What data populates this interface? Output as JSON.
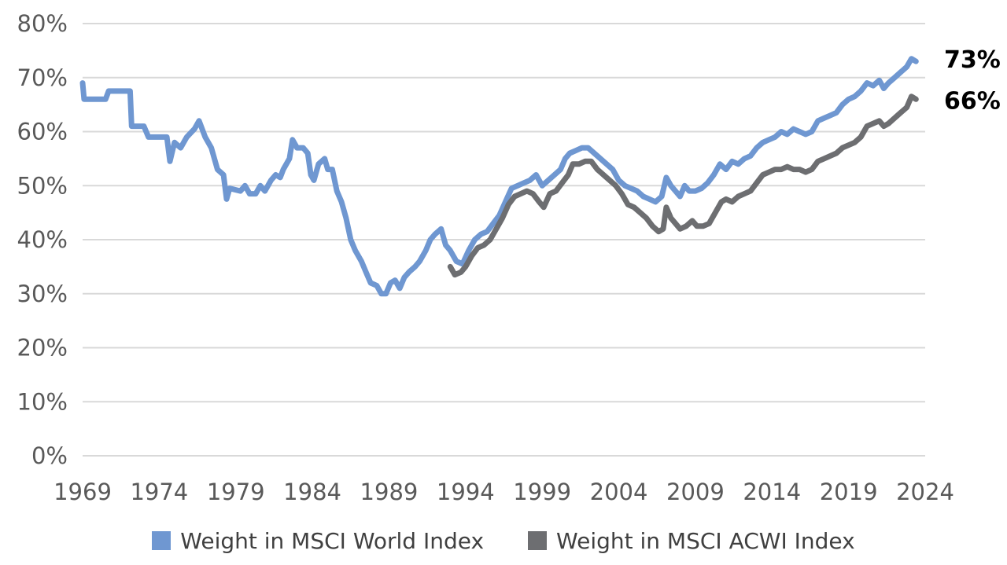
{
  "chart_data": {
    "type": "line",
    "title": "",
    "xlabel": "",
    "ylabel": "",
    "xlim": [
      1969,
      2024
    ],
    "ylim": [
      0,
      80
    ],
    "x_ticks": [
      "1969",
      "1974",
      "1979",
      "1984",
      "1989",
      "1994",
      "1999",
      "2004",
      "2009",
      "2014",
      "2019",
      "2024"
    ],
    "y_ticks": [
      "0%",
      "10%",
      "20%",
      "30%",
      "40%",
      "50%",
      "60%",
      "70%",
      "80%"
    ],
    "grid": "horizontal",
    "legend_position": "bottom",
    "series": [
      {
        "name": "Weight in MSCI World Index",
        "color": "#6F97D1",
        "end_label": "73%",
        "points": [
          [
            1969,
            69
          ],
          [
            1969.1,
            66
          ],
          [
            1970.5,
            66
          ],
          [
            1970.7,
            67.5
          ],
          [
            1972.1,
            67.5
          ],
          [
            1972.2,
            61
          ],
          [
            1973,
            61
          ],
          [
            1973.3,
            59
          ],
          [
            1974.5,
            59
          ],
          [
            1974.7,
            54.5
          ],
          [
            1975,
            58
          ],
          [
            1975.4,
            57
          ],
          [
            1975.8,
            59
          ],
          [
            1976.3,
            60.5
          ],
          [
            1976.6,
            62
          ],
          [
            1977,
            59
          ],
          [
            1977.4,
            57
          ],
          [
            1977.8,
            53
          ],
          [
            1978.2,
            52
          ],
          [
            1978.4,
            47.5
          ],
          [
            1978.6,
            49.5
          ],
          [
            1979.3,
            49
          ],
          [
            1979.6,
            50
          ],
          [
            1979.9,
            48.5
          ],
          [
            1980.3,
            48.5
          ],
          [
            1980.6,
            50
          ],
          [
            1980.9,
            49
          ],
          [
            1981.3,
            51
          ],
          [
            1981.6,
            52
          ],
          [
            1981.9,
            51.5
          ],
          [
            1982.1,
            53
          ],
          [
            1982.5,
            55
          ],
          [
            1982.7,
            58.5
          ],
          [
            1983,
            57
          ],
          [
            1983.4,
            57
          ],
          [
            1983.7,
            56
          ],
          [
            1983.9,
            52
          ],
          [
            1984.1,
            51
          ],
          [
            1984.4,
            54
          ],
          [
            1984.8,
            55
          ],
          [
            1985,
            53
          ],
          [
            1985.3,
            53
          ],
          [
            1985.6,
            49
          ],
          [
            1985.9,
            47
          ],
          [
            1986.2,
            44
          ],
          [
            1986.5,
            40
          ],
          [
            1986.8,
            38
          ],
          [
            1987.2,
            36
          ],
          [
            1987.5,
            34
          ],
          [
            1987.8,
            32
          ],
          [
            1988.2,
            31.5
          ],
          [
            1988.5,
            30
          ],
          [
            1988.8,
            30
          ],
          [
            1989.1,
            32
          ],
          [
            1989.4,
            32.5
          ],
          [
            1989.7,
            31
          ],
          [
            1990,
            33
          ],
          [
            1990.3,
            34
          ],
          [
            1990.7,
            35
          ],
          [
            1991,
            36
          ],
          [
            1991.4,
            38
          ],
          [
            1991.7,
            40
          ],
          [
            1992,
            41
          ],
          [
            1992.4,
            42
          ],
          [
            1992.7,
            39
          ],
          [
            1993,
            38
          ],
          [
            1993.4,
            36
          ],
          [
            1993.8,
            35.5
          ],
          [
            1994.2,
            38
          ],
          [
            1994.6,
            40
          ],
          [
            1995,
            41
          ],
          [
            1995.4,
            41.5
          ],
          [
            1995.8,
            43
          ],
          [
            1996.2,
            44.5
          ],
          [
            1996.6,
            47
          ],
          [
            1997,
            49.5
          ],
          [
            1997.4,
            50
          ],
          [
            1997.8,
            50.5
          ],
          [
            1998.2,
            51
          ],
          [
            1998.6,
            52
          ],
          [
            1999,
            50
          ],
          [
            1999.4,
            51
          ],
          [
            1999.8,
            52
          ],
          [
            2000.2,
            53
          ],
          [
            2000.5,
            55
          ],
          [
            2000.8,
            56
          ],
          [
            2001.2,
            56.5
          ],
          [
            2001.6,
            57
          ],
          [
            2002,
            57
          ],
          [
            2002.4,
            56
          ],
          [
            2002.8,
            55
          ],
          [
            2003.2,
            54
          ],
          [
            2003.6,
            53
          ],
          [
            2004,
            51
          ],
          [
            2004.4,
            50
          ],
          [
            2004.8,
            49.5
          ],
          [
            2005.2,
            49
          ],
          [
            2005.6,
            48
          ],
          [
            2006,
            47.5
          ],
          [
            2006.4,
            47
          ],
          [
            2006.8,
            48
          ],
          [
            2007.1,
            51.5
          ],
          [
            2007.4,
            50
          ],
          [
            2007.7,
            49
          ],
          [
            2008,
            48
          ],
          [
            2008.3,
            50
          ],
          [
            2008.6,
            49
          ],
          [
            2009,
            49
          ],
          [
            2009.4,
            49.5
          ],
          [
            2009.8,
            50.5
          ],
          [
            2010.2,
            52
          ],
          [
            2010.6,
            54
          ],
          [
            2011,
            53
          ],
          [
            2011.4,
            54.5
          ],
          [
            2011.8,
            54
          ],
          [
            2012.2,
            55
          ],
          [
            2012.6,
            55.5
          ],
          [
            2013,
            57
          ],
          [
            2013.4,
            58
          ],
          [
            2013.8,
            58.5
          ],
          [
            2014.2,
            59
          ],
          [
            2014.6,
            60
          ],
          [
            2015,
            59.5
          ],
          [
            2015.4,
            60.5
          ],
          [
            2015.8,
            60
          ],
          [
            2016.2,
            59.5
          ],
          [
            2016.6,
            60
          ],
          [
            2017,
            62
          ],
          [
            2017.4,
            62.5
          ],
          [
            2017.8,
            63
          ],
          [
            2018.2,
            63.5
          ],
          [
            2018.6,
            65
          ],
          [
            2019,
            66
          ],
          [
            2019.4,
            66.5
          ],
          [
            2019.8,
            67.5
          ],
          [
            2020.2,
            69
          ],
          [
            2020.6,
            68.5
          ],
          [
            2021,
            69.5
          ],
          [
            2021.3,
            68
          ],
          [
            2021.6,
            69
          ],
          [
            2022,
            70
          ],
          [
            2022.4,
            71
          ],
          [
            2022.8,
            72
          ],
          [
            2023.1,
            73.5
          ],
          [
            2023.4,
            73
          ]
        ]
      },
      {
        "name": "Weight in MSCI ACWI Index",
        "color": "#6D6E71",
        "end_label": "66%",
        "points": [
          [
            1993,
            35
          ],
          [
            1993.3,
            33.5
          ],
          [
            1993.7,
            34
          ],
          [
            1994,
            35
          ],
          [
            1994.4,
            37
          ],
          [
            1994.8,
            38.5
          ],
          [
            1995.2,
            39
          ],
          [
            1995.6,
            40
          ],
          [
            1996,
            42
          ],
          [
            1996.4,
            44
          ],
          [
            1996.8,
            46.5
          ],
          [
            1997.2,
            48
          ],
          [
            1997.6,
            48.5
          ],
          [
            1998,
            49
          ],
          [
            1998.4,
            48.5
          ],
          [
            1998.8,
            47
          ],
          [
            1999.1,
            46
          ],
          [
            1999.5,
            48.5
          ],
          [
            1999.9,
            49
          ],
          [
            2000.3,
            50.5
          ],
          [
            2000.7,
            52
          ],
          [
            2001,
            54
          ],
          [
            2001.4,
            54
          ],
          [
            2001.8,
            54.5
          ],
          [
            2002.2,
            54.5
          ],
          [
            2002.6,
            53
          ],
          [
            2003,
            52
          ],
          [
            2003.4,
            51
          ],
          [
            2003.8,
            50
          ],
          [
            2004.2,
            48.5
          ],
          [
            2004.6,
            46.5
          ],
          [
            2005,
            46
          ],
          [
            2005.4,
            45
          ],
          [
            2005.8,
            44
          ],
          [
            2006.2,
            42.5
          ],
          [
            2006.6,
            41.5
          ],
          [
            2006.9,
            42
          ],
          [
            2007.1,
            46
          ],
          [
            2007.4,
            44
          ],
          [
            2007.7,
            43
          ],
          [
            2008,
            42
          ],
          [
            2008.4,
            42.5
          ],
          [
            2008.8,
            43.5
          ],
          [
            2009.1,
            42.5
          ],
          [
            2009.5,
            42.5
          ],
          [
            2009.9,
            43
          ],
          [
            2010.3,
            45
          ],
          [
            2010.7,
            47
          ],
          [
            2011,
            47.5
          ],
          [
            2011.4,
            47
          ],
          [
            2011.8,
            48
          ],
          [
            2012.2,
            48.5
          ],
          [
            2012.6,
            49
          ],
          [
            2013,
            50.5
          ],
          [
            2013.4,
            52
          ],
          [
            2013.8,
            52.5
          ],
          [
            2014.2,
            53
          ],
          [
            2014.6,
            53
          ],
          [
            2015,
            53.5
          ],
          [
            2015.4,
            53
          ],
          [
            2015.8,
            53
          ],
          [
            2016.2,
            52.5
          ],
          [
            2016.6,
            53
          ],
          [
            2017,
            54.5
          ],
          [
            2017.4,
            55
          ],
          [
            2017.8,
            55.5
          ],
          [
            2018.2,
            56
          ],
          [
            2018.6,
            57
          ],
          [
            2019,
            57.5
          ],
          [
            2019.4,
            58
          ],
          [
            2019.8,
            59
          ],
          [
            2020.2,
            61
          ],
          [
            2020.6,
            61.5
          ],
          [
            2021,
            62
          ],
          [
            2021.3,
            61
          ],
          [
            2021.6,
            61.5
          ],
          [
            2022,
            62.5
          ],
          [
            2022.4,
            63.5
          ],
          [
            2022.8,
            64.5
          ],
          [
            2023.1,
            66.5
          ],
          [
            2023.4,
            66
          ]
        ]
      }
    ]
  }
}
